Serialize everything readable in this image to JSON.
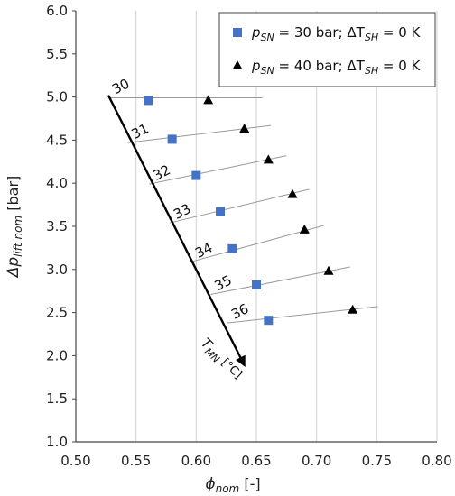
{
  "chart_data": {
    "type": "scatter",
    "title": "",
    "xlabel_main": "ϕ",
    "xlabel_sub": "nom",
    "xlabel_unit": " [-]",
    "ylabel_main": "Δp",
    "ylabel_sub": "lift nom",
    "ylabel_unit": " [bar]",
    "xlim": [
      0.5,
      0.8
    ],
    "ylim": [
      1.0,
      6.0
    ],
    "x_ticks": [
      "0.50",
      "0.55",
      "0.60",
      "0.65",
      "0.70",
      "0.75",
      "0.80"
    ],
    "y_ticks": [
      "1.0",
      "1.5",
      "2.0",
      "2.5",
      "3.0",
      "3.5",
      "4.0",
      "4.5",
      "5.0",
      "5.5",
      "6.0"
    ],
    "grid": {
      "vertical": true,
      "horizontal": false
    },
    "legend_placement": "top-right",
    "series": [
      {
        "name": "p_SN = 30 bar; ΔT_SH = 0 K",
        "legend_main": "p",
        "legend_sub": "SN",
        "legend_rest": " = 30 bar; ΔT",
        "legend_sub2": "SH",
        "legend_end": " = 0 K",
        "marker": "square",
        "color": "#4472c4",
        "points": [
          {
            "x": 0.56,
            "y": 4.96
          },
          {
            "x": 0.58,
            "y": 4.51
          },
          {
            "x": 0.6,
            "y": 4.09
          },
          {
            "x": 0.62,
            "y": 3.67
          },
          {
            "x": 0.63,
            "y": 3.24
          },
          {
            "x": 0.65,
            "y": 2.82
          },
          {
            "x": 0.66,
            "y": 2.41
          }
        ]
      },
      {
        "name": "p_SN = 40 bar; ΔT_SH = 0 K",
        "legend_main": "p",
        "legend_sub": "SN",
        "legend_rest": " = 40 bar; ΔT",
        "legend_sub2": "SH",
        "legend_end": " = 0 K",
        "marker": "triangle",
        "color": "#000000",
        "points": [
          {
            "x": 0.61,
            "y": 4.96
          },
          {
            "x": 0.64,
            "y": 4.63
          },
          {
            "x": 0.66,
            "y": 4.27
          },
          {
            "x": 0.68,
            "y": 3.87
          },
          {
            "x": 0.69,
            "y": 3.46
          },
          {
            "x": 0.71,
            "y": 2.98
          },
          {
            "x": 0.73,
            "y": 2.53
          }
        ]
      }
    ],
    "isotherms": [
      {
        "label": "30",
        "x1": 0.527,
        "y1": 4.99,
        "x2": 0.655,
        "y2": 4.99
      },
      {
        "label": "31",
        "x1": 0.543,
        "y1": 4.47,
        "x2": 0.662,
        "y2": 4.67
      },
      {
        "label": "32",
        "x1": 0.561,
        "y1": 3.99,
        "x2": 0.675,
        "y2": 4.32
      },
      {
        "label": "33",
        "x1": 0.578,
        "y1": 3.54,
        "x2": 0.694,
        "y2": 3.93
      },
      {
        "label": "34",
        "x1": 0.596,
        "y1": 3.09,
        "x2": 0.706,
        "y2": 3.51
      },
      {
        "label": "35",
        "x1": 0.612,
        "y1": 2.71,
        "x2": 0.728,
        "y2": 3.03
      },
      {
        "label": "36",
        "x1": 0.626,
        "y1": 2.38,
        "x2": 0.751,
        "y2": 2.57
      }
    ],
    "temperature_axis": {
      "label_main": "T",
      "label_sub": "MN",
      "label_unit": " [°C]",
      "x1": 0.527,
      "y1": 5.02,
      "x2": 0.64,
      "y2": 1.89
    }
  }
}
